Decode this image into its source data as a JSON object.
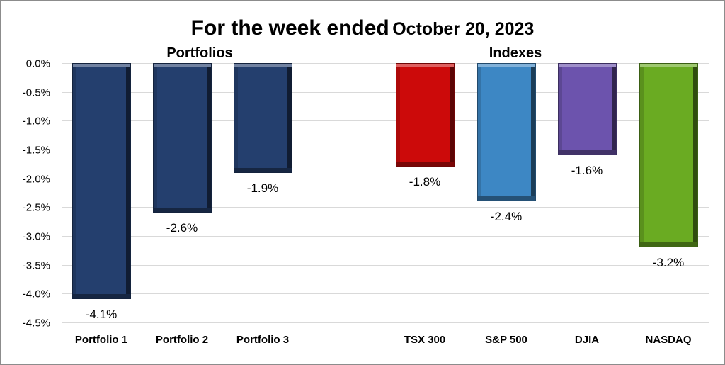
{
  "chart_data": {
    "type": "bar",
    "title": "For the week ended October 20, 2023",
    "title_parts": [
      "For the week ended",
      "October 20, 2023"
    ],
    "groups": [
      {
        "label": "Portfolios",
        "categories": [
          "Portfolio 1",
          "Portfolio 2",
          "Portfolio 3"
        ]
      },
      {
        "label": "Indexes",
        "categories": [
          "TSX 300",
          "S&P 500",
          "DJIA",
          "NASDAQ"
        ]
      }
    ],
    "categories": [
      "Portfolio 1",
      "Portfolio 2",
      "Portfolio 3",
      "TSX 300",
      "S&P 500",
      "DJIA",
      "NASDAQ"
    ],
    "values": [
      -4.1,
      -2.6,
      -1.9,
      -1.8,
      -2.4,
      -1.6,
      -3.2
    ],
    "data_labels": [
      "-4.1%",
      "-2.6%",
      "-1.9%",
      "-1.8%",
      "-2.4%",
      "-1.6%",
      "-3.2%"
    ],
    "colors": [
      "#243f6e",
      "#243f6e",
      "#243f6e",
      "#cc0a0a",
      "#3d87c4",
      "#6c53ad",
      "#6aab22"
    ],
    "xlabel": "",
    "ylabel": "",
    "ylim": [
      -4.5,
      0.0
    ],
    "yticks": [
      "0.0%",
      "-0.5%",
      "-1.0%",
      "-1.5%",
      "-2.0%",
      "-2.5%",
      "-3.0%",
      "-3.5%",
      "-4.0%",
      "-4.5%"
    ],
    "grid": true,
    "legend": "none"
  }
}
